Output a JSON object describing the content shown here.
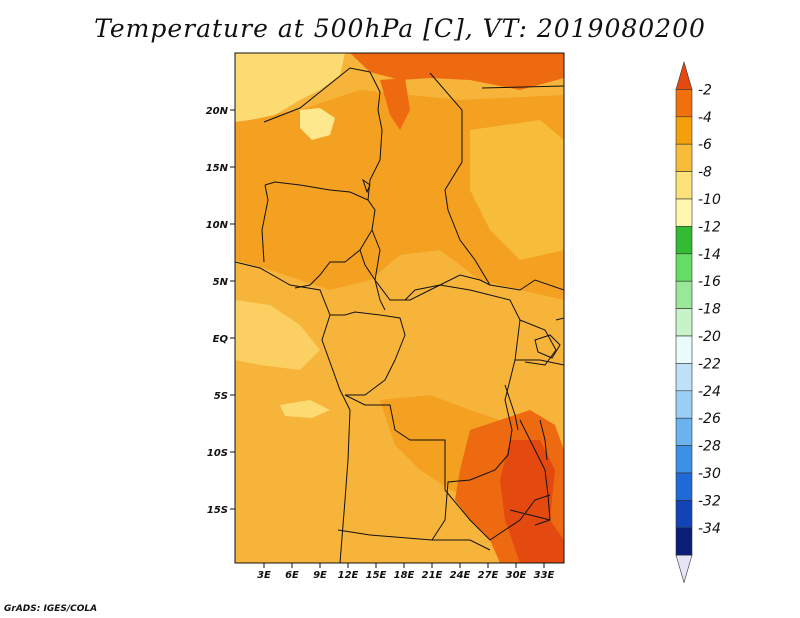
{
  "title": "Temperature at 500hPa [C], VT: 2019080200",
  "credit": "GrADS: IGES/COLA",
  "map": {
    "lat_labels": [
      "20N",
      "15N",
      "10N",
      "5N",
      "EQ",
      "5S",
      "10S",
      "15S"
    ],
    "lon_labels": [
      "3E",
      "6E",
      "9E",
      "12E",
      "15E",
      "18E",
      "21E",
      "24E",
      "27E",
      "30E",
      "33E"
    ]
  },
  "colorbar": {
    "labels": [
      "-2",
      "-4",
      "-6",
      "-8",
      "-10",
      "-12",
      "-14",
      "-16",
      "-18",
      "-20",
      "-22",
      "-24",
      "-26",
      "-28",
      "-30",
      "-32",
      "-34"
    ],
    "colors": [
      "#e44a0f",
      "#f0700c",
      "#f4a00a",
      "#f7bd3a",
      "#fbe27a",
      "#fff7b0",
      "#33bb33",
      "#66dd66",
      "#99e899",
      "#c8f2c8",
      "#e9fbfb",
      "#bfe0f7",
      "#9ccff4",
      "#6ab3ee",
      "#3c90e6",
      "#1e6ad8",
      "#1244b8",
      "#0a1e78",
      "#e5e5f7"
    ]
  },
  "palette": {
    "background": "#ffffff",
    "base": "#f7b43a",
    "warm": "#f4a020",
    "hot": "#ee6a10",
    "cool": "#fbdb72",
    "coolest": "#fde88e"
  }
}
